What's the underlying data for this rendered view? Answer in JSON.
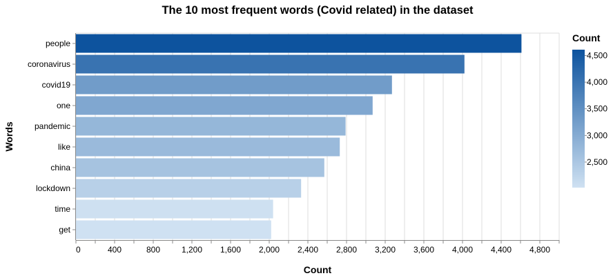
{
  "chart_data": {
    "type": "bar",
    "orientation": "horizontal",
    "title": "The 10 most frequent words (Covid related) in the dataset",
    "xlabel": "Count",
    "ylabel": "Words",
    "categories": [
      "people",
      "coronavirus",
      "covid19",
      "one",
      "pandemic",
      "like",
      "china",
      "lockdown",
      "time",
      "get"
    ],
    "values": [
      4610,
      4020,
      3270,
      3070,
      2790,
      2730,
      2570,
      2330,
      2040,
      2020
    ],
    "xlim": [
      0,
      5000
    ],
    "x_ticks": [
      0,
      400,
      800,
      1200,
      1600,
      2000,
      2400,
      2800,
      3200,
      3600,
      4000,
      4400,
      4800
    ],
    "x_tick_labels": [
      "0",
      "400",
      "800",
      "1,200",
      "1,600",
      "2,000",
      "2,400",
      "2,800",
      "3,200",
      "3,600",
      "4,000",
      "4,400",
      "4,800"
    ],
    "grid": true,
    "color_scale": {
      "domain": [
        2020,
        4610
      ],
      "range": [
        "#cfe1f2",
        "#0d539e"
      ]
    },
    "legend": {
      "title": "Count",
      "placement": "right",
      "ticks": [
        2500,
        3000,
        3500,
        4000,
        4500
      ],
      "tick_labels": [
        "2,500",
        "3,000",
        "3,500",
        "4,000",
        "4,500"
      ]
    }
  }
}
